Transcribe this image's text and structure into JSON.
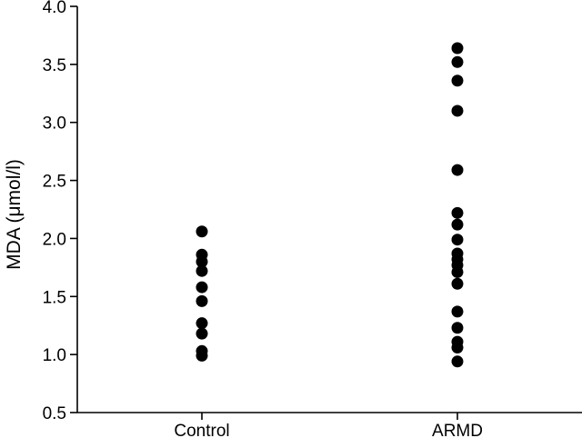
{
  "chart_data": {
    "type": "scatter",
    "ylabel": "MDA (μmol/l)",
    "xlabel": "",
    "categories": [
      "Control",
      "ARMD"
    ],
    "ylim": [
      0.5,
      4.0
    ],
    "yticks": [
      0.5,
      1.0,
      1.5,
      2.0,
      2.5,
      3.0,
      3.5,
      4.0
    ],
    "ytick_labels": [
      "0.5",
      "1.0",
      "1.5",
      "2.0",
      "2.5",
      "3.0",
      "3.5",
      "4.0"
    ],
    "grid": false,
    "marker_color": "#000000",
    "series": [
      {
        "category": "Control",
        "values": [
          2.06,
          1.86,
          1.8,
          1.72,
          1.58,
          1.46,
          1.27,
          1.18,
          1.03,
          0.99
        ]
      },
      {
        "category": "ARMD",
        "values": [
          3.64,
          3.52,
          3.36,
          3.1,
          2.59,
          2.22,
          2.12,
          1.99,
          1.87,
          1.82,
          1.77,
          1.71,
          1.61,
          1.37,
          1.23,
          1.11,
          1.06,
          0.94
        ]
      }
    ]
  }
}
